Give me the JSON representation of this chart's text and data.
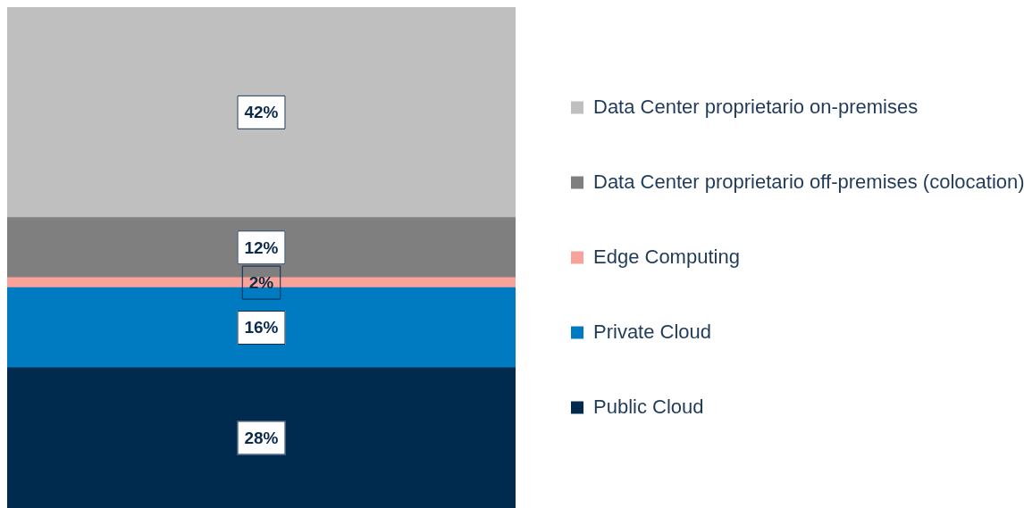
{
  "chart_data": {
    "type": "bar",
    "stacked": true,
    "categories": [
      null
    ],
    "series": [
      {
        "name": "Public Cloud",
        "color": "#002b4f",
        "values": [
          28
        ],
        "value_labels": [
          "28%"
        ]
      },
      {
        "name": "Private Cloud",
        "color": "#007bc2",
        "values": [
          16
        ],
        "value_labels": [
          "16%"
        ]
      },
      {
        "name": "Edge Computing",
        "color": "#f7a29b",
        "values": [
          2
        ],
        "value_labels": [
          "2%"
        ]
      },
      {
        "name": "Data Center proprietario off-premises (colocation)",
        "color": "#7f7f7f",
        "values": [
          12
        ],
        "value_labels": [
          "12%"
        ]
      },
      {
        "name": "Data Center proprietario on-premises",
        "color": "#bfbfbf",
        "values": [
          42
        ],
        "value_labels": [
          "42%"
        ]
      }
    ],
    "legend": "right"
  }
}
